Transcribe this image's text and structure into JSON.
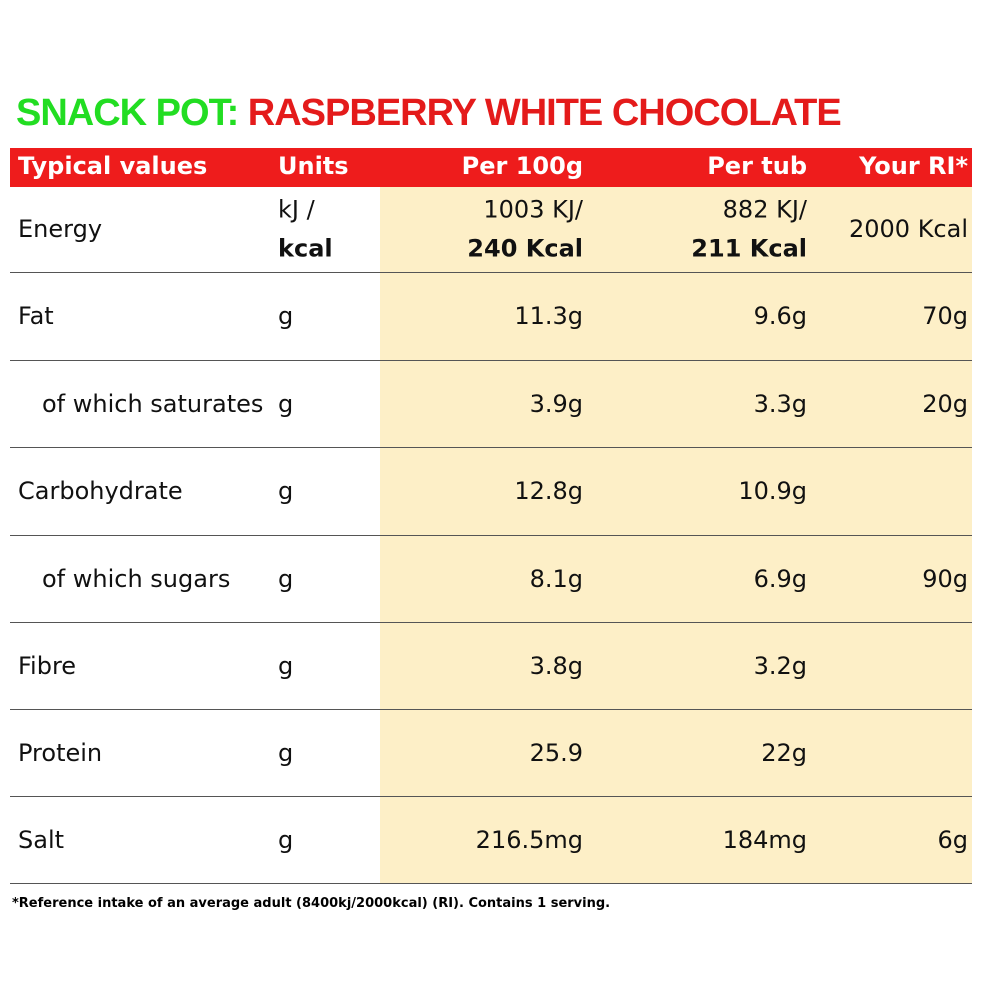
{
  "title": {
    "brand": "SNACK POT:",
    "product": "RASPBERRY WHITE CHOCOLATE"
  },
  "table": {
    "header": [
      "Typical values",
      "Units",
      "Per 100g",
      "Per tub",
      "Your RI*"
    ],
    "rows": [
      {
        "label": "Energy",
        "units": [
          "kJ /",
          "kcal"
        ],
        "per_100g": [
          "1003 KJ/",
          "240 Kcal"
        ],
        "per_tub": [
          "882 KJ/",
          "211 Kcal"
        ],
        "ri": "2000 Kcal"
      },
      {
        "label": "Fat",
        "units": "g",
        "per_100g": "11.3g",
        "per_tub": "9.6g",
        "ri": "70g"
      },
      {
        "label": "of which saturates",
        "units": "g",
        "per_100g": "3.9g",
        "per_tub": "3.3g",
        "ri": "20g"
      },
      {
        "label": "Carbohydrate",
        "units": "g",
        "per_100g": "12.8g",
        "per_tub": "10.9g"
      },
      {
        "label": "of which sugars",
        "units": "g",
        "per_100g": "8.1g",
        "per_tub": "6.9g",
        "ri": "90g"
      },
      {
        "label": "Fibre",
        "units": "g",
        "per_100g": "3.8g",
        "per_tub": "3.2g"
      },
      {
        "label": "Protein",
        "units": "g",
        "per_100g": "25.9",
        "per_tub": "22g"
      },
      {
        "label": "Salt",
        "units": "g",
        "per_100g": "216.5mg",
        "per_tub": "184mg",
        "ri": "6g"
      }
    ]
  },
  "footnote": "*Reference intake of an average adult (8400kj/2000kcal) (RI). Contains 1 serving."
}
